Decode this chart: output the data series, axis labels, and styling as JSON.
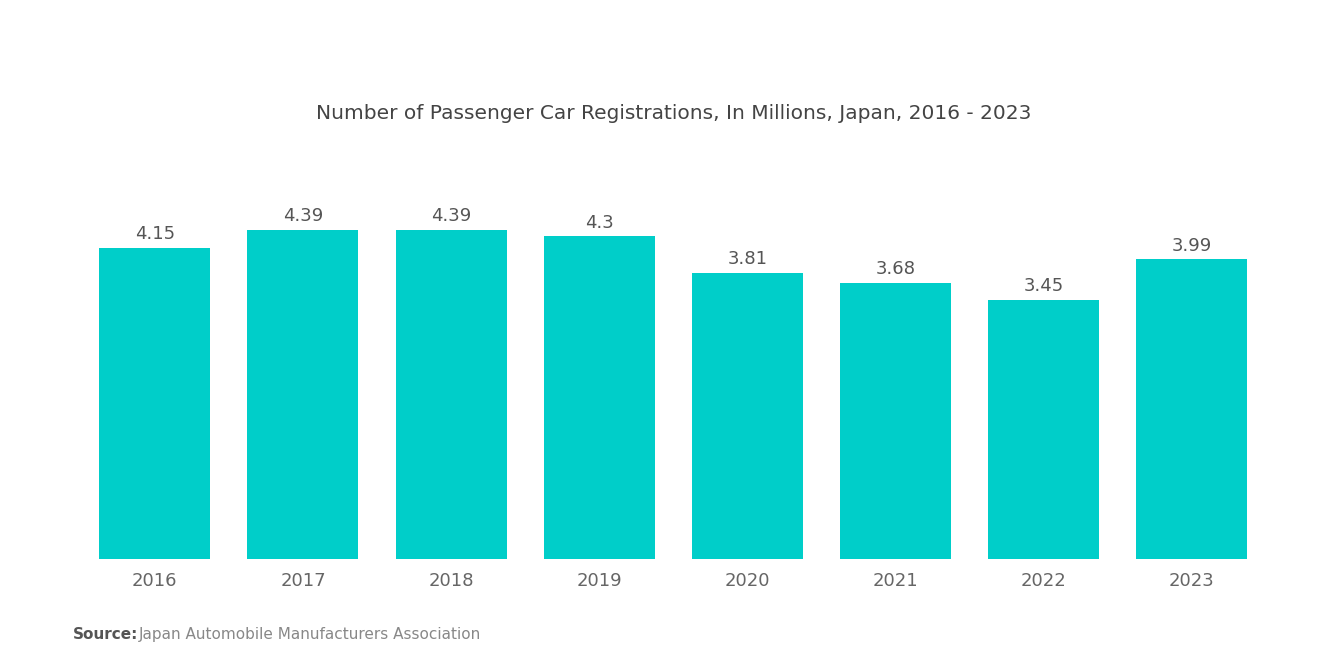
{
  "title": "Number of Passenger Car Registrations, In Millions, Japan, 2016 - 2023",
  "years": [
    "2016",
    "2017",
    "2018",
    "2019",
    "2020",
    "2021",
    "2022",
    "2023"
  ],
  "values": [
    4.15,
    4.39,
    4.39,
    4.3,
    3.81,
    3.68,
    3.45,
    3.99
  ],
  "bar_color": "#00CEC9",
  "background_color": "#ffffff",
  "title_fontsize": 14.5,
  "tick_fontsize": 13,
  "value_fontsize": 13,
  "source_bold": "Source:",
  "source_text": "  Japan Automobile Manufacturers Association",
  "ylim": [
    0,
    5.5
  ],
  "bar_width": 0.75,
  "title_color": "#444444",
  "tick_color": "#666666",
  "value_color": "#555555"
}
